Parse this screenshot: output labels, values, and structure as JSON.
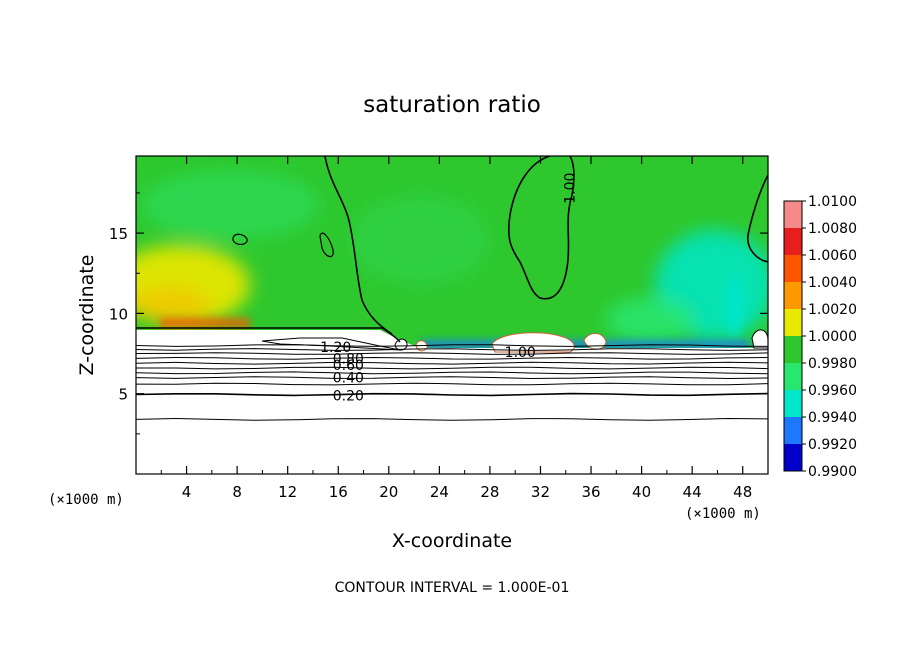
{
  "chart_data": {
    "type": "heatmap",
    "title": "saturation ratio",
    "xlabel": "X-coordinate",
    "ylabel": "Z-coordinate",
    "x_unit_left": "(×1000 m)",
    "x_unit_right": "(×1000 m)",
    "xlim": [
      0,
      50
    ],
    "ylim": [
      0,
      19.8
    ],
    "x_ticks": [
      4,
      8,
      12,
      16,
      20,
      24,
      28,
      32,
      36,
      40,
      44,
      48
    ],
    "y_ticks": [
      5,
      10,
      15
    ],
    "footer": "CONTOUR INTERVAL = 1.000E-01",
    "colorbar": {
      "levels": [
        "1.0100",
        "1.0080",
        "1.0060",
        "1.0040",
        "1.0020",
        "1.0000",
        "0.9980",
        "0.9960",
        "0.9940",
        "0.9920",
        "0.9900"
      ],
      "colors": [
        "#f58a8a",
        "#e61e1e",
        "#ff5500",
        "#ff9900",
        "#e8e800",
        "#2ec82e",
        "#28e66e",
        "#00e6c8",
        "#1e78ff",
        "#0000c8",
        "#50008c"
      ]
    },
    "contour_labels": [
      {
        "text": "1.00",
        "x": 34.3,
        "z": 17.8,
        "rot": -90
      },
      {
        "text": "1.20",
        "x": 15.8,
        "z": 7.9,
        "rot": 0
      },
      {
        "text": "1.00",
        "x": 30.4,
        "z": 7.6,
        "rot": 0
      },
      {
        "text": "0.80",
        "x": 16.8,
        "z": 7.2,
        "rot": 0
      },
      {
        "text": "0.60",
        "x": 16.8,
        "z": 6.8,
        "rot": 0
      },
      {
        "text": "0.40",
        "x": 16.8,
        "z": 6.0,
        "rot": 0
      },
      {
        "text": "0.20",
        "x": 16.8,
        "z": 4.9,
        "rot": 0
      }
    ],
    "stratified_contours_z": [
      8.0,
      7.75,
      7.5,
      7.2,
      6.9,
      6.6,
      6.3,
      6.0,
      5.6,
      4.95,
      3.4
    ],
    "grid": false
  }
}
